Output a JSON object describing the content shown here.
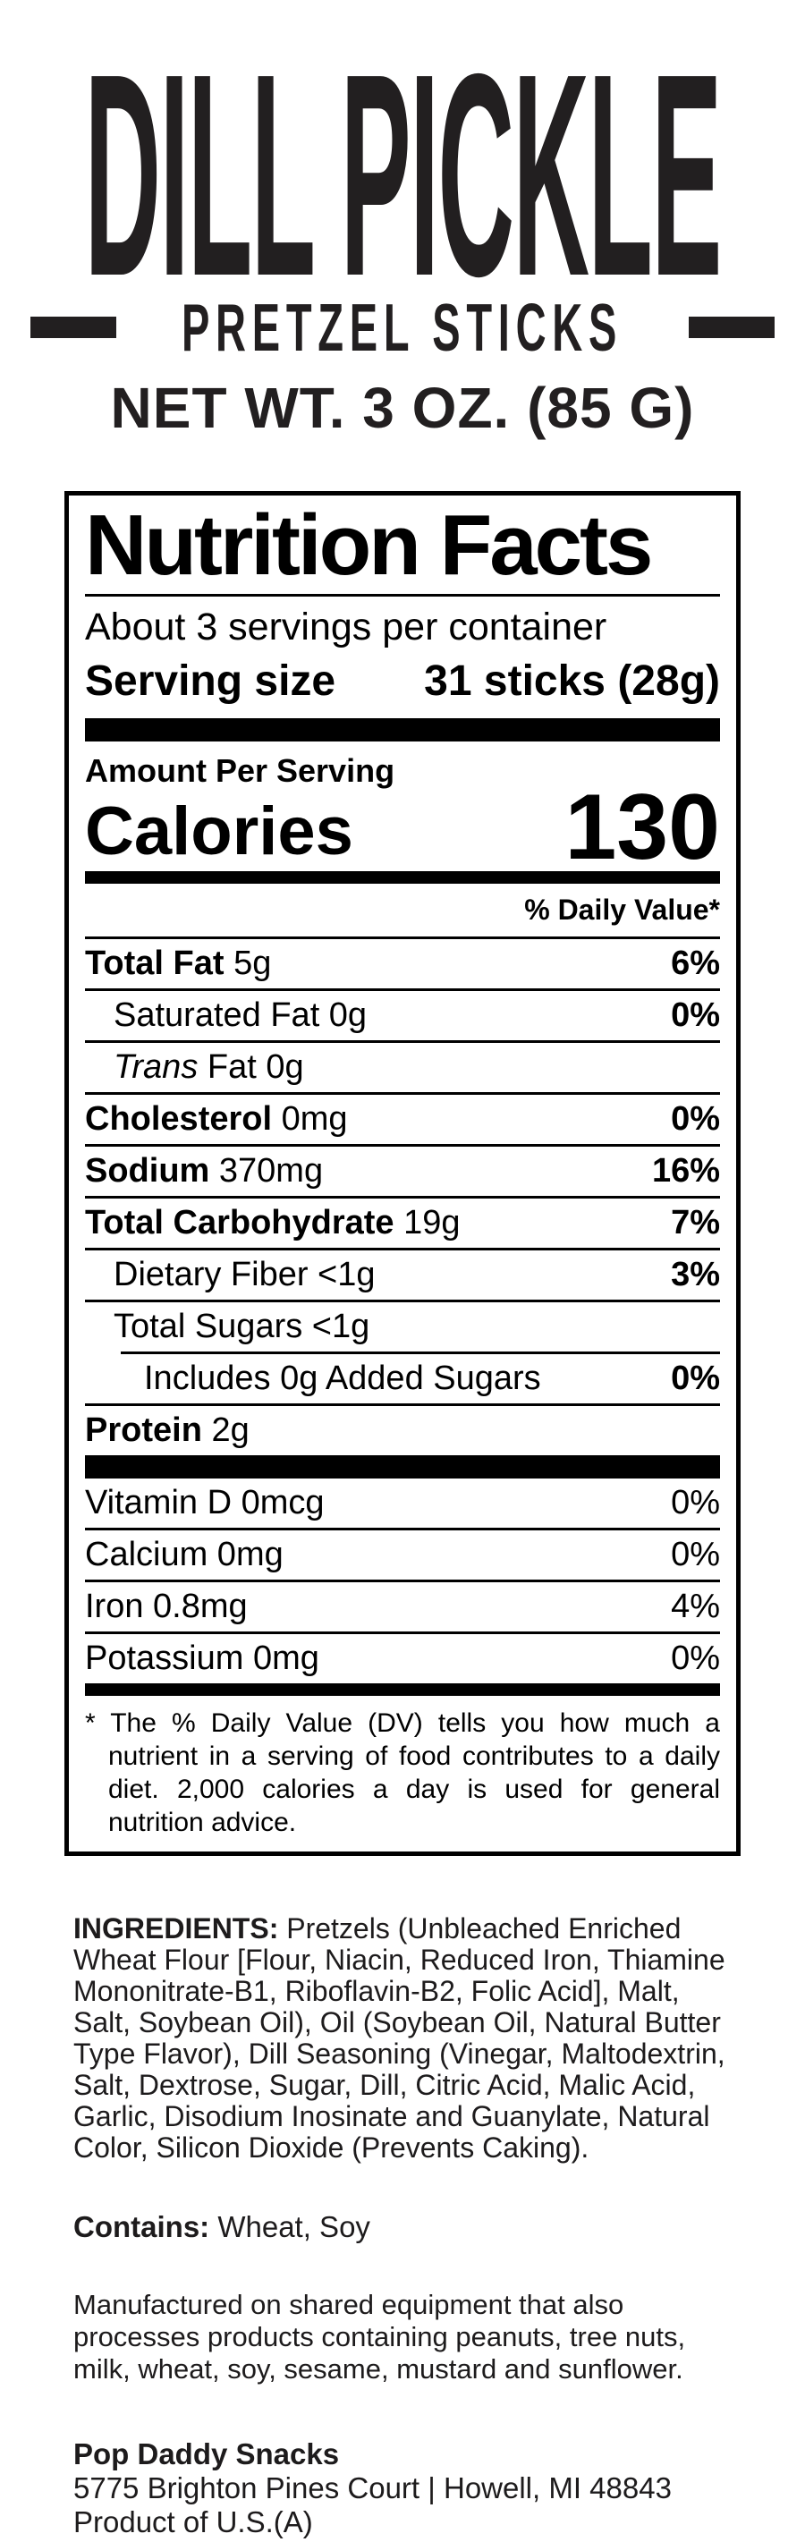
{
  "colors": {
    "ink": "#221f20",
    "panel_ink": "#000000",
    "background": "#ffffff"
  },
  "brand": {
    "title": "DILL PICKLE",
    "subtitle": "PRETZEL STICKS",
    "net_weight": "NET WT. 3 OZ. (85 G)"
  },
  "nutrition": {
    "header": "Nutrition Facts",
    "servings_per_container": "About 3 servings per container",
    "serving_size_label": "Serving size",
    "serving_size_value": "31 sticks (28g)",
    "amount_per_serving_label": "Amount Per Serving",
    "calories_label": "Calories",
    "calories_value": "130",
    "daily_value_header": "% Daily Value*",
    "main_rows": [
      {
        "bold": "Total Fat",
        "regular": " 5g",
        "dv": "6%",
        "dv_bold": true,
        "indent": 0
      },
      {
        "regular": "Saturated Fat 0g",
        "dv": "0%",
        "dv_bold": true,
        "indent": 1
      },
      {
        "italic": "Trans",
        "regular": " Fat 0g",
        "dv": "",
        "indent": 1
      },
      {
        "bold": "Cholesterol",
        "regular": " 0mg",
        "dv": "0%",
        "dv_bold": true,
        "indent": 0
      },
      {
        "bold": "Sodium",
        "regular": " 370mg",
        "dv": "16%",
        "dv_bold": true,
        "indent": 0
      },
      {
        "bold": "Total Carbohydrate",
        "regular": " 19g",
        "dv": "7%",
        "dv_bold": true,
        "indent": 0
      },
      {
        "regular": "Dietary Fiber <1g",
        "dv": "3%",
        "dv_bold": true,
        "indent": 1
      },
      {
        "regular": "Total Sugars <1g",
        "dv": "",
        "indent": 1
      },
      {
        "regular": "Includes 0g Added Sugars",
        "dv": "0%",
        "dv_bold": true,
        "indent": 2,
        "rule_indent": true
      },
      {
        "bold": "Protein",
        "regular": " 2g",
        "dv": "",
        "indent": 0
      }
    ],
    "vitamin_rows": [
      {
        "regular": "Vitamin D 0mcg",
        "dv": "0%"
      },
      {
        "regular": "Calcium 0mg",
        "dv": "0%"
      },
      {
        "regular": "Iron 0.8mg",
        "dv": "4%"
      },
      {
        "regular": "Potassium 0mg",
        "dv": "0%"
      }
    ],
    "footnote_mark": "*",
    "footnote": "The % Daily Value (DV) tells you how much a nutrient in a serving of food contributes to a daily diet. 2,000 calories a day is used for general nutrition advice."
  },
  "ingredients": {
    "label": "INGREDIENTS:",
    "text": " Pretzels (Unbleached Enriched Wheat Flour [Flour, Niacin, Reduced Iron, Thiamine Mononitrate-B1, Riboflavin-B2, Folic Acid], Malt, Salt, Soybean Oil), Oil (Soybean Oil, Natural Butter Type Flavor), Dill Seasoning (Vinegar, Maltodextrin, Salt, Dextrose, Sugar, Dill, Citric Acid, Malic Acid, Garlic, Disodium Inosinate and Guanylate, Natural Color, Silicon Dioxide (Prevents Caking)."
  },
  "contains": {
    "label": "Contains:",
    "text": " Wheat, Soy"
  },
  "allergen_statement": "Manufactured on shared equipment that also processes products containing peanuts, tree nuts, milk, wheat, soy, sesame, mustard and sunflower.",
  "footer": {
    "company": "Pop Daddy Snacks",
    "address": "5775 Brighton Pines Court | Howell, MI 48843",
    "origin": "Product of U.S.(A)"
  }
}
